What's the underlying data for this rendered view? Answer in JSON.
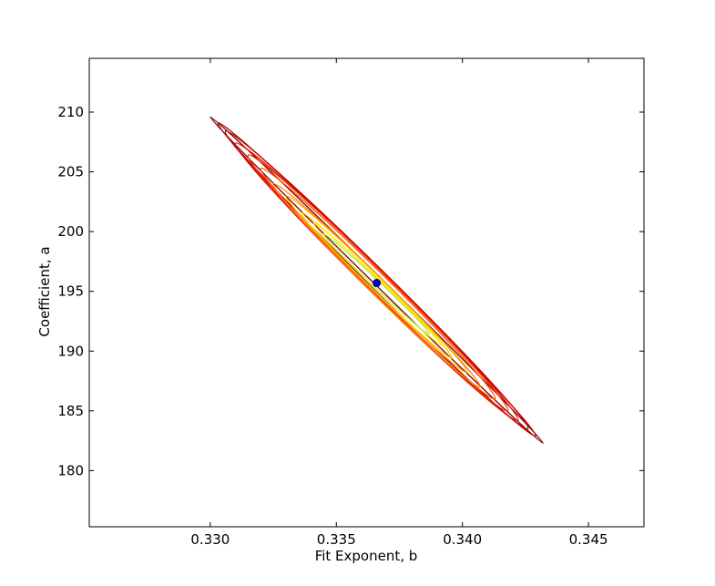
{
  "chart_data": {
    "type": "contour",
    "title": "",
    "xlabel": "Fit Exponent, b",
    "ylabel": "Coefficient, a",
    "xlim": [
      0.3252,
      0.3472
    ],
    "ylim": [
      175.3,
      214.5
    ],
    "xticks": [
      0.33,
      0.335,
      0.34,
      0.345
    ],
    "xtick_labels": [
      "0.330",
      "0.335",
      "0.340",
      "0.345"
    ],
    "yticks": [
      180,
      185,
      190,
      195,
      200,
      205,
      210
    ],
    "ytick_labels": [
      "180",
      "185",
      "190",
      "195",
      "200",
      "205",
      "210"
    ],
    "grid": false,
    "legend": "none",
    "best_fit_point": {
      "x": 0.3366,
      "y": 195.7,
      "color": "#0000cc"
    },
    "contours": [
      {
        "name": "level-1",
        "x1": 0.33,
        "y1": 209.6,
        "x2": 0.3432,
        "y2": 182.3,
        "width_frac": 0.018,
        "color": "#800000"
      },
      {
        "name": "level-2",
        "x1": 0.3303,
        "y1": 209.1,
        "x2": 0.3429,
        "y2": 182.9,
        "width_frac": 0.04,
        "color": "#a00000"
      },
      {
        "name": "level-3",
        "x1": 0.3306,
        "y1": 208.4,
        "x2": 0.3426,
        "y2": 183.5,
        "width_frac": 0.05,
        "color": "#c00000"
      },
      {
        "name": "level-4",
        "x1": 0.331,
        "y1": 207.4,
        "x2": 0.3422,
        "y2": 184.2,
        "width_frac": 0.055,
        "color": "#dd1500"
      },
      {
        "name": "level-5",
        "x1": 0.3315,
        "y1": 206.4,
        "x2": 0.3418,
        "y2": 185.0,
        "width_frac": 0.058,
        "color": "#f03000"
      },
      {
        "name": "level-6",
        "x1": 0.332,
        "y1": 205.3,
        "x2": 0.3413,
        "y2": 186.0,
        "width_frac": 0.058,
        "color": "#ff5000"
      },
      {
        "name": "level-7",
        "x1": 0.3325,
        "y1": 204.0,
        "x2": 0.3407,
        "y2": 187.0,
        "width_frac": 0.057,
        "color": "#ff8000"
      },
      {
        "name": "level-8",
        "x1": 0.333,
        "y1": 203.0,
        "x2": 0.3402,
        "y2": 188.2,
        "width_frac": 0.054,
        "color": "#ffaa00"
      },
      {
        "name": "level-9",
        "x1": 0.3336,
        "y1": 201.6,
        "x2": 0.3396,
        "y2": 189.4,
        "width_frac": 0.052,
        "color": "#ffd000"
      },
      {
        "name": "level-10",
        "x1": 0.3341,
        "y1": 200.7,
        "x2": 0.3392,
        "y2": 190.5,
        "width_frac": 0.05,
        "color": "#ffee00"
      },
      {
        "name": "level-11",
        "x1": 0.3345,
        "y1": 199.8,
        "x2": 0.3387,
        "y2": 191.4,
        "width_frac": 0.048,
        "color": "#b8f04a"
      }
    ]
  }
}
